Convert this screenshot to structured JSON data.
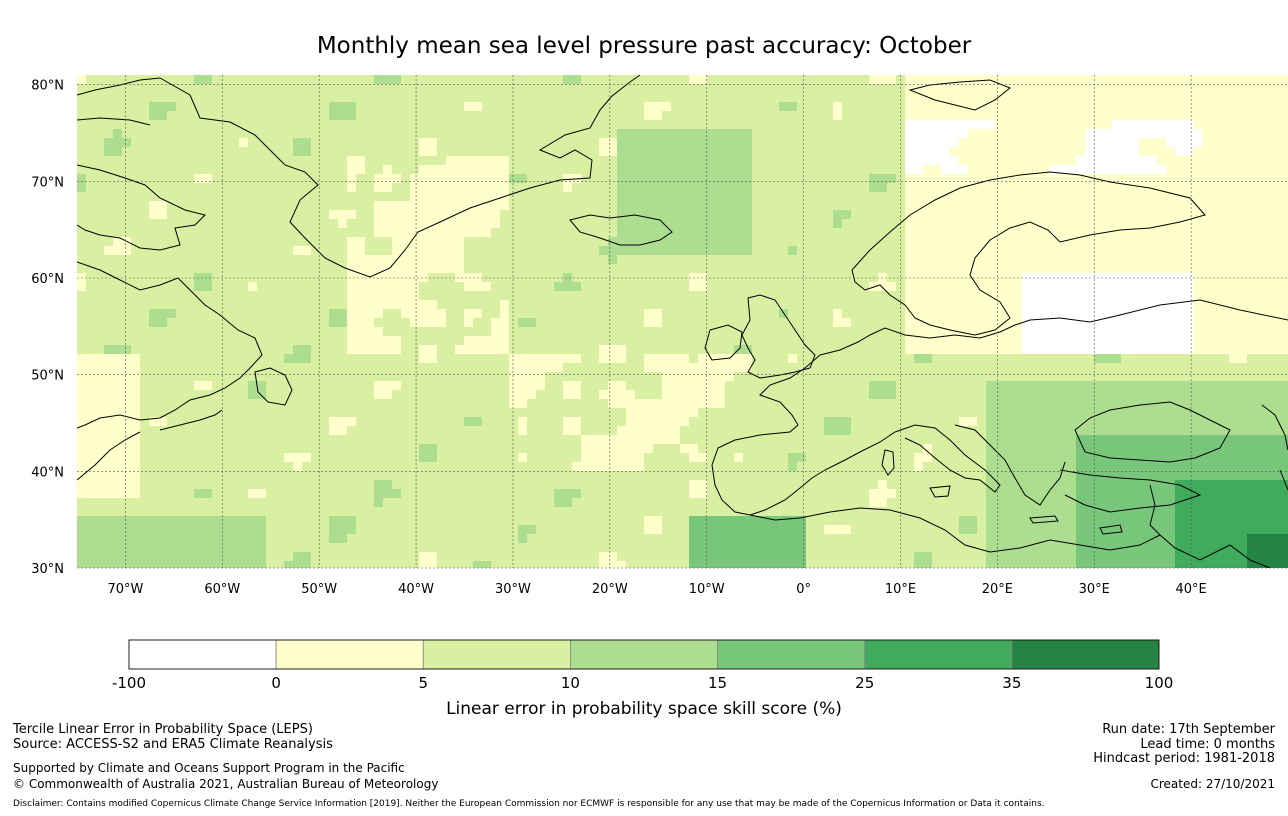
{
  "title": "Monthly mean sea level pressure past accuracy: October",
  "map": {
    "lat_labels": [
      "80°N",
      "70°N",
      "60°N",
      "50°N",
      "40°N",
      "30°N"
    ],
    "lon_labels": [
      "70°W",
      "60°W",
      "50°W",
      "40°W",
      "30°W",
      "20°W",
      "10°W",
      "0°",
      "10°E",
      "20°E",
      "30°E",
      "40°E"
    ],
    "lat_values": [
      80,
      70,
      60,
      50,
      40,
      30
    ],
    "lon_values": [
      -70,
      -60,
      -50,
      -40,
      -30,
      -20,
      -10,
      0,
      10,
      20,
      30,
      40
    ],
    "lon_range": [
      -75,
      50
    ],
    "lat_range": [
      30,
      81
    ]
  },
  "colorbar": {
    "ticks": [
      "-100",
      "0",
      "5",
      "10",
      "15",
      "25",
      "35",
      "100"
    ],
    "colors": [
      "#ffffff",
      "#ffffcc",
      "#d9f0a3",
      "#addd8e",
      "#78c679",
      "#41ab5d",
      "#238443"
    ],
    "label": "Linear error in probability space skill score (%)"
  },
  "footer": {
    "left1": "Tercile Linear Error in Probability Space (LEPS)",
    "left2": "Source: ACCESS-S2 and ERA5 Climate Reanalysis",
    "left3": "Supported by Climate and Oceans Support Program in the Pacific",
    "left4": "© Commonwealth of Australia 2021, Australian Bureau of Meteorology",
    "right1": "Run date: 17th September",
    "right2": "Lead time: 0 months",
    "right3": "Hindcast period: 1981-2018",
    "right4": "Created: 27/10/2021",
    "disclaimer": "Disclaimer: Contains modified Copernicus Climate Change Service Information [2019]. Neither the European Commission nor ECMWF is responsible for any use that may be made of the Copernicus Information or Data it contains."
  }
}
